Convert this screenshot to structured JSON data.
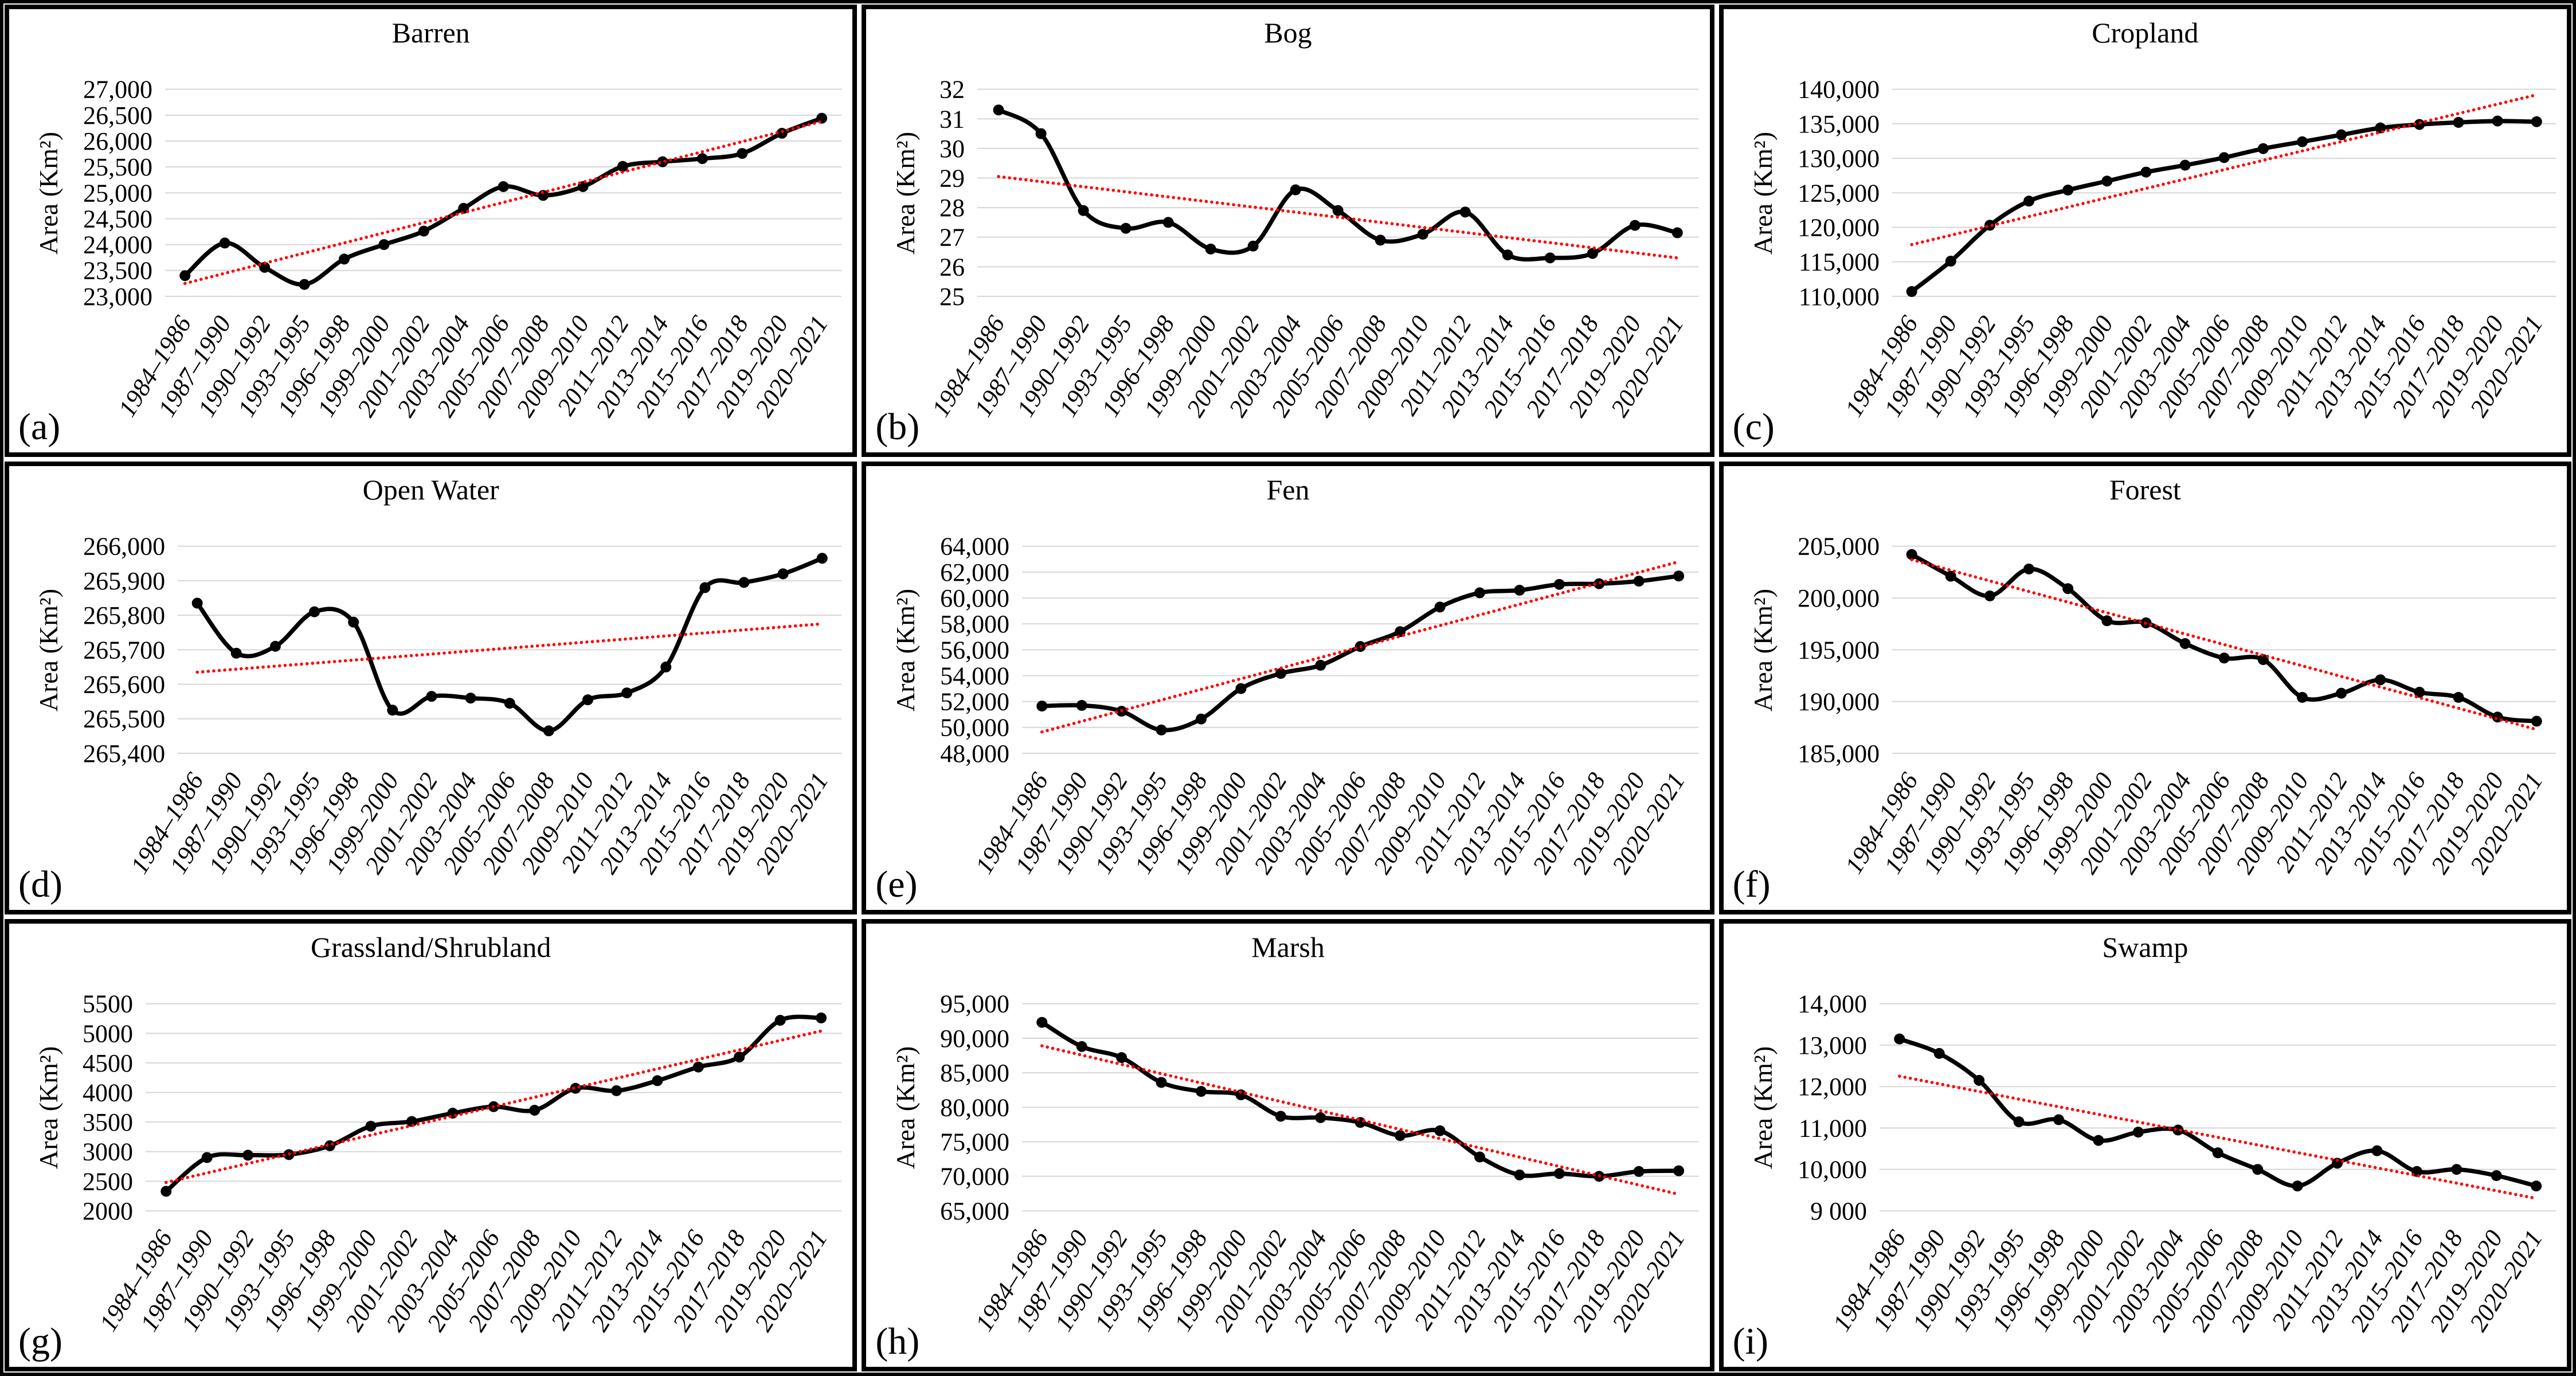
{
  "figure": {
    "ylabel": "Area (Km²)",
    "x_categories": [
      "1984–1986",
      "1987–1990",
      "1990–1992",
      "1993–1995",
      "1996–1998",
      "1999–2000",
      "2001–2002",
      "2003–2004",
      "2005–2006",
      "2007–2008",
      "2009–2010",
      "2011–2012",
      "2013–2014",
      "2015–2016",
      "2017–2018",
      "2019–2020",
      "2020–2021"
    ],
    "series_color": "#000000",
    "trend_color": "#FF0000",
    "gridline_color": "#D9D9D9",
    "background_color": "#FFFFFF",
    "border_color": "#000000"
  },
  "chart_data": [
    {
      "type": "line",
      "panel_label": "(a)",
      "title": "Barren",
      "ylim": [
        23000,
        27000
      ],
      "grid": true,
      "legend": "none",
      "ytick_values": [
        27000,
        26500,
        26000,
        25500,
        25000,
        24500,
        24000,
        23500,
        23000
      ],
      "ytick_labels": [
        "27,000",
        "26,500",
        "26,000",
        "25,500",
        "25,000",
        "24,500",
        "24,000",
        "23,500",
        "23,000"
      ],
      "values": [
        23400,
        24030,
        23560,
        23230,
        23720,
        24000,
        24260,
        24700,
        25120,
        24950,
        25120,
        25510,
        25600,
        25660,
        25760,
        26150,
        26440
      ],
      "trendline": {
        "start": 23250,
        "end": 26380
      }
    },
    {
      "type": "line",
      "panel_label": "(b)",
      "title": "Bog",
      "ylim": [
        25,
        32
      ],
      "grid": true,
      "legend": "none",
      "ytick_values": [
        32,
        31,
        30,
        29,
        28,
        27,
        26,
        25
      ],
      "ytick_labels": [
        "32",
        "31",
        "30",
        "29",
        "28",
        "27",
        "26",
        "25"
      ],
      "values": [
        31.3,
        30.5,
        27.9,
        27.3,
        27.5,
        26.6,
        26.7,
        28.6,
        27.9,
        26.9,
        27.1,
        27.85,
        26.4,
        26.3,
        26.45,
        27.4,
        27.15
      ],
      "trendline": {
        "start": 29.05,
        "end": 26.3
      }
    },
    {
      "type": "line",
      "panel_label": "(c)",
      "title": "Cropland",
      "ylim": [
        110000,
        140000
      ],
      "grid": true,
      "legend": "none",
      "ytick_values": [
        140000,
        135000,
        130000,
        125000,
        120000,
        115000,
        110000
      ],
      "ytick_labels": [
        "140,000",
        "135,000",
        "130,000",
        "125,000",
        "120,000",
        "115,000",
        "110,000"
      ],
      "values": [
        110700,
        115100,
        120300,
        123800,
        125400,
        126700,
        128000,
        129000,
        130100,
        131400,
        132400,
        133400,
        134400,
        134900,
        135200,
        135400,
        135300
      ],
      "trendline": {
        "start": 117500,
        "end": 139200
      }
    },
    {
      "type": "line",
      "panel_label": "(d)",
      "title": "Open Water",
      "ylim": [
        265400,
        266000
      ],
      "grid": true,
      "legend": "none",
      "ytick_values": [
        266000,
        265900,
        265800,
        265700,
        265600,
        265500,
        265400
      ],
      "ytick_labels": [
        "266,000",
        "265,900",
        "265,800",
        "265,700",
        "265,600",
        "265,500",
        "265,400"
      ],
      "values": [
        265835,
        265690,
        265710,
        265810,
        265780,
        265525,
        265565,
        265560,
        265545,
        265465,
        265555,
        265575,
        265650,
        265880,
        265895,
        265920,
        265965
      ],
      "trendline": {
        "start": 265635,
        "end": 265775
      }
    },
    {
      "type": "line",
      "panel_label": "(e)",
      "title": "Fen",
      "ylim": [
        48000,
        64000
      ],
      "grid": true,
      "legend": "none",
      "ytick_values": [
        64000,
        62000,
        60000,
        58000,
        56000,
        54000,
        52000,
        50000,
        48000
      ],
      "ytick_labels": [
        "64,000",
        "62,000",
        "60,000",
        "58,000",
        "56,000",
        "54,000",
        "52,000",
        "50,000",
        "48,000"
      ],
      "values": [
        51650,
        51700,
        51250,
        49800,
        50650,
        53000,
        54170,
        54800,
        56250,
        57400,
        59300,
        60400,
        60600,
        61050,
        61100,
        61300,
        61700
      ],
      "trendline": {
        "start": 49650,
        "end": 62800
      }
    },
    {
      "type": "line",
      "panel_label": "(f)",
      "title": "Forest",
      "ylim": [
        185000,
        205000
      ],
      "grid": true,
      "legend": "none",
      "ytick_values": [
        205000,
        200000,
        195000,
        190000,
        185000
      ],
      "ytick_labels": [
        "205,000",
        "200,000",
        "195,000",
        "190,000",
        "185,000"
      ],
      "values": [
        204200,
        202100,
        200200,
        202800,
        200900,
        197800,
        197600,
        195600,
        194200,
        194050,
        190400,
        190800,
        192100,
        190900,
        190400,
        188500,
        188100
      ],
      "trendline": {
        "start": 203700,
        "end": 187300
      }
    },
    {
      "type": "line",
      "panel_label": "(g)",
      "title": "Grassland/Shrubland",
      "ylim": [
        2000,
        5500
      ],
      "grid": true,
      "legend": "none",
      "ytick_values": [
        5500,
        5000,
        4500,
        4000,
        3500,
        3000,
        2500,
        2000
      ],
      "ytick_labels": [
        "5500",
        "5000",
        "4500",
        "4000",
        "3500",
        "3000",
        "2500",
        "2000"
      ],
      "values": [
        2330,
        2900,
        2940,
        2950,
        3100,
        3430,
        3510,
        3650,
        3760,
        3700,
        4070,
        4030,
        4200,
        4430,
        4600,
        5220,
        5260
      ],
      "trendline": {
        "start": 2480,
        "end": 5040
      }
    },
    {
      "type": "line",
      "panel_label": "(h)",
      "title": "Marsh",
      "ylim": [
        65000,
        95000
      ],
      "grid": true,
      "legend": "none",
      "ytick_values": [
        95000,
        90000,
        85000,
        80000,
        75000,
        70000,
        65000
      ],
      "ytick_labels": [
        "95,000",
        "90,000",
        "85,000",
        "80,000",
        "75,000",
        "70,000",
        "65,000"
      ],
      "values": [
        92300,
        88800,
        87200,
        83600,
        82300,
        81800,
        78700,
        78500,
        77800,
        75900,
        76600,
        72800,
        70200,
        70400,
        70000,
        70700,
        70800
      ],
      "trendline": {
        "start": 88900,
        "end": 67400
      }
    },
    {
      "type": "line",
      "panel_label": "(i)",
      "title": "Swamp",
      "ylim": [
        9000,
        14000
      ],
      "grid": true,
      "legend": "none",
      "ytick_values": [
        14000,
        13000,
        12000,
        11000,
        10000,
        9000
      ],
      "ytick_labels": [
        "14,000",
        "13,000",
        "12,000",
        "11,000",
        "10,000",
        "9 000"
      ],
      "values": [
        13150,
        12800,
        12150,
        11150,
        11200,
        10700,
        10900,
        10950,
        10400,
        10000,
        9600,
        10150,
        10450,
        9950,
        10000,
        9850,
        9600
      ],
      "trendline": {
        "start": 12250,
        "end": 9300
      }
    }
  ]
}
